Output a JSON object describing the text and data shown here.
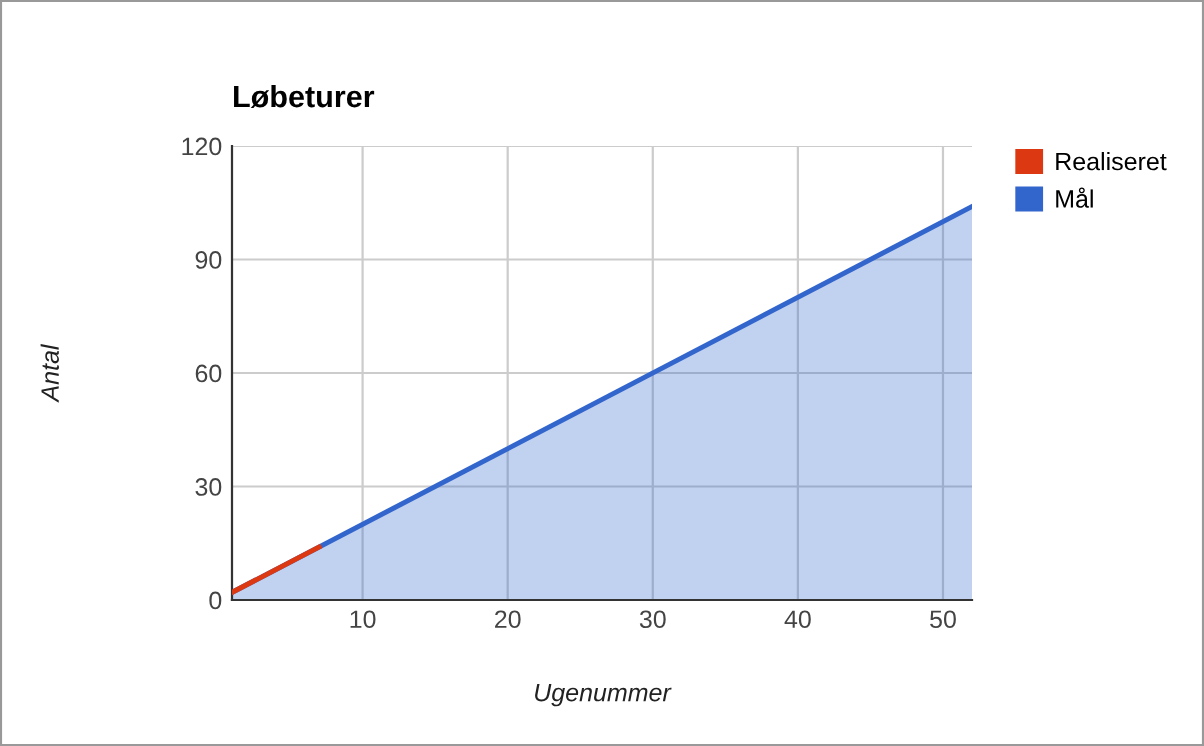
{
  "chart_data": {
    "type": "line",
    "title": "Løbeturer",
    "xlabel": "Ugenummer",
    "ylabel": "Antal",
    "xlim": [
      1,
      52
    ],
    "xticks": [
      10,
      20,
      30,
      40,
      50
    ],
    "ylim": [
      0,
      120
    ],
    "yticks": [
      0,
      30,
      60,
      90,
      120
    ],
    "grid": true,
    "legend": "right",
    "series": [
      {
        "name": "Realiseret",
        "color": "#dc3912",
        "x": [
          1,
          7
        ],
        "values": [
          2,
          14
        ]
      },
      {
        "name": "Mål",
        "color": "#3366cc",
        "type": "area",
        "x": [
          1,
          52
        ],
        "values": [
          2,
          104
        ]
      }
    ]
  }
}
